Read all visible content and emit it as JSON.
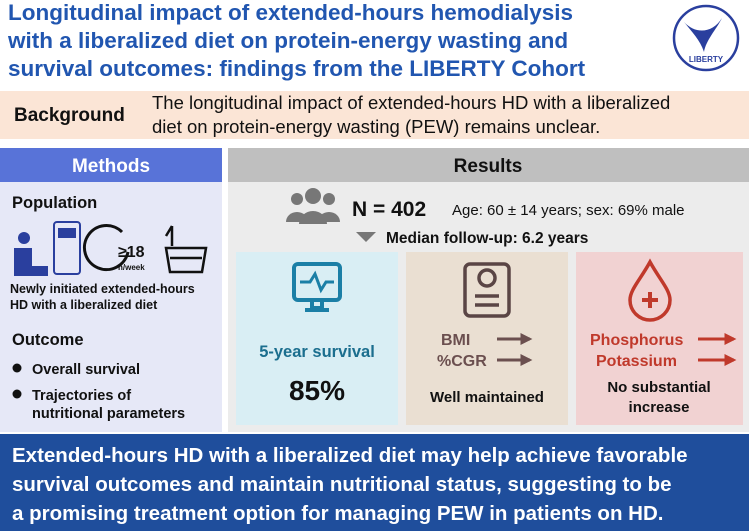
{
  "header": {
    "title_lines": [
      "Longitudinal impact of extended-hours hemodialysis",
      "with a liberalized diet on protein-energy wasting and",
      "survival outcomes: findings from the LIBERTY Cohort"
    ],
    "logo_text": "LIBERTY"
  },
  "background": {
    "label": "Background",
    "text_lines": [
      "The longitudinal impact of extended-hours HD with a liberalized",
      "diet on protein-energy wasting (PEW) remains unclear."
    ]
  },
  "methods": {
    "heading": "Methods",
    "population": {
      "heading": "Population",
      "hours": "≥18",
      "hours_unit": "h/week",
      "description_lines": [
        "Newly initiated extended-hours",
        "HD with a liberalized diet"
      ]
    },
    "outcome": {
      "heading": "Outcome",
      "items": [
        [
          "Overall survival"
        ],
        [
          "Trajectories of",
          "nutritional parameters"
        ]
      ]
    }
  },
  "results": {
    "heading": "Results",
    "n": "N = 402",
    "demographics": "Age: 60 ± 14 years; sex: 69% male",
    "follow_up": "Median follow-up: 6.2 years",
    "survival": {
      "label": "5-year survival",
      "value": "85%"
    },
    "anthropometry": {
      "lines": [
        "BMI",
        "%CGR"
      ],
      "summary": "Well maintained"
    },
    "minerals": {
      "lines": [
        "Phosphorus",
        "Potassium"
      ],
      "summary_lines": [
        "No substantial",
        "increase"
      ]
    }
  },
  "conclusion": {
    "lines": [
      "Extended-hours HD with a liberalized diet may help achieve favorable",
      "survival outcomes and maintain nutritional status, suggesting to be",
      "a promising treatment option for managing PEW in patients on HD."
    ]
  }
}
